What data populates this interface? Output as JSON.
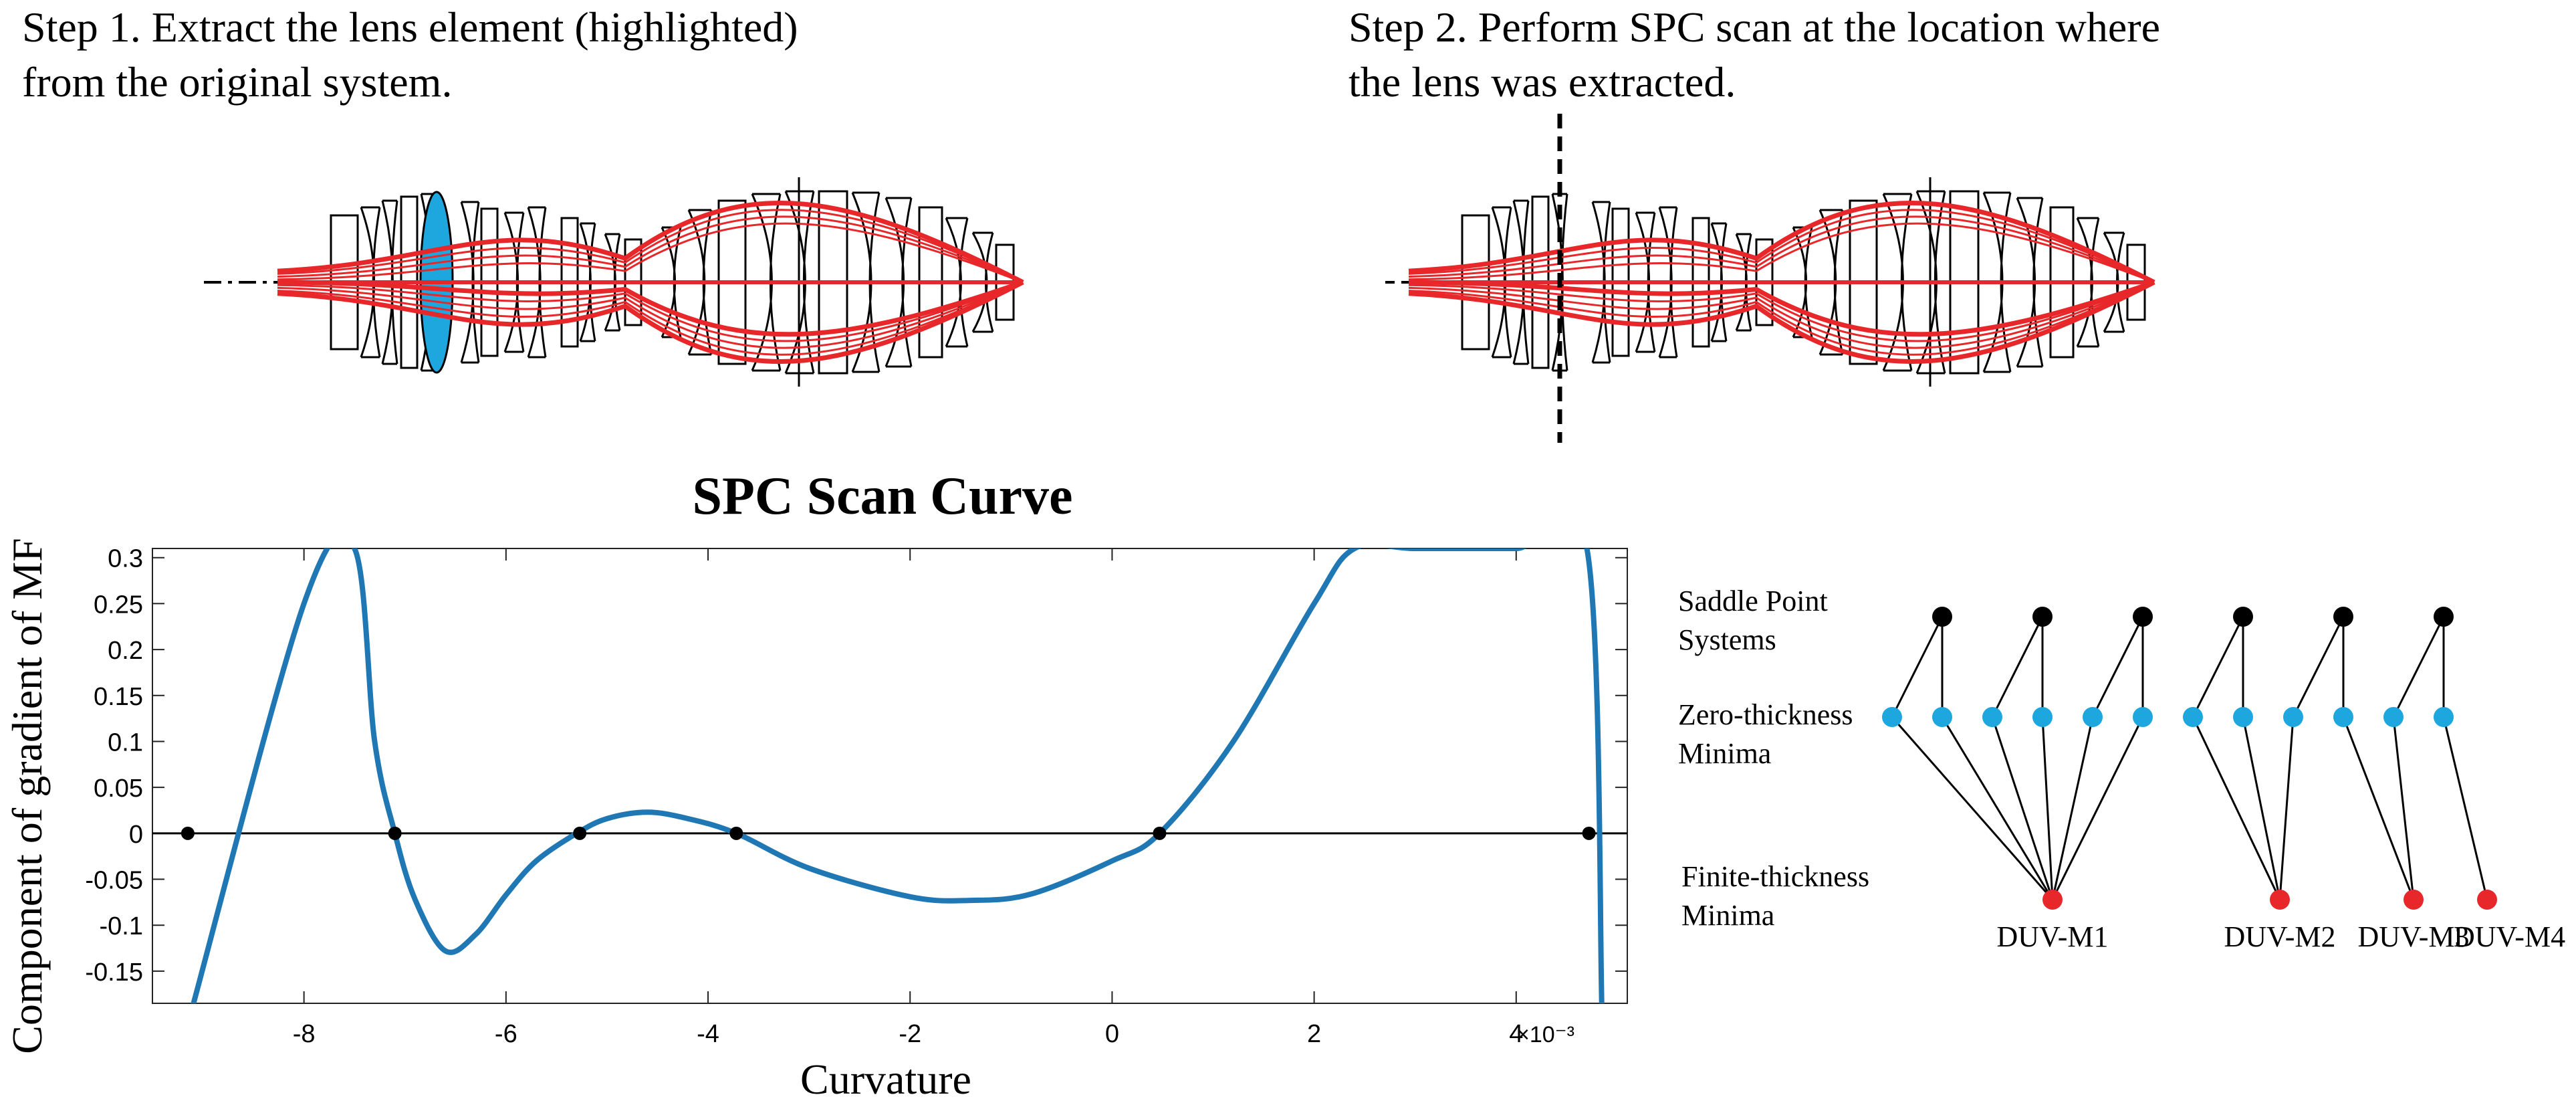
{
  "step1": {
    "line1": "Step 1. Extract the lens element (highlighted)",
    "line2": "from the original system."
  },
  "step2": {
    "line1": "Step 2. Perform SPC scan at the location where",
    "line2": "the lens was extracted."
  },
  "colors": {
    "ray": "#e8272a",
    "highlight": "#1ea6df",
    "curve": "#1f77b4",
    "saddle": "#000000",
    "zero_thickness": "#1ea6df",
    "finite_thickness": "#e8272a"
  },
  "chart_data": {
    "type": "line",
    "title": "SPC Scan Curve",
    "xlabel": "Curvature",
    "ylabel": "Component of gradient of MF",
    "x_exponent_label": "×10⁻³",
    "xlim": [
      -9.5,
      5.1
    ],
    "ylim": [
      -0.185,
      0.31
    ],
    "x_ticks": [
      "-8",
      "-6",
      "-4",
      "-2",
      "0",
      "2",
      "4"
    ],
    "y_ticks": [
      "0.3",
      "0.25",
      "0.2",
      "0.15",
      "0.1",
      "0.05",
      "0",
      "-0.05",
      "-0.1",
      "-0.15"
    ],
    "grid": false,
    "zero_line": true,
    "series": [
      {
        "x": [
          -9.13,
          -8.0,
          -7.5,
          -7.3,
          -7.1,
          -6.9,
          -6.6,
          -6.3,
          -6.0,
          -5.7,
          -5.3,
          -5.0,
          -4.6,
          -4.2,
          -3.72,
          -3.0,
          -2.0,
          -1.4,
          -0.8,
          0.0,
          0.47,
          1.2,
          2.0,
          2.4,
          3.0,
          4.0,
          4.7,
          4.85
        ],
        "y": [
          -0.2,
          0.25,
          0.31,
          0.1,
          0.0,
          -0.072,
          -0.128,
          -0.11,
          -0.067,
          -0.03,
          0.0,
          0.016,
          0.023,
          0.016,
          0.0,
          -0.038,
          -0.069,
          -0.073,
          -0.066,
          -0.03,
          0.0,
          0.1,
          0.25,
          0.31,
          0.31,
          0.31,
          0.31,
          -0.2
        ]
      }
    ],
    "zero_crossings": [
      -9.15,
      -7.1,
      -5.27,
      -3.72,
      0.47,
      4.72
    ]
  },
  "tree": {
    "levels": {
      "saddle_line1": "Saddle Point",
      "saddle_line2": "Systems",
      "zero_line1": "Zero-thickness",
      "zero_line2": "Minima",
      "finite_line1": "Finite-thickness",
      "finite_line2": "Minima"
    },
    "saddle_count": 6,
    "zero_count": 12,
    "finite": [
      {
        "label": "DUV-M1"
      },
      {
        "label": "DUV-M2"
      },
      {
        "label": "DUV-M3"
      },
      {
        "label": "DUV-M4"
      }
    ],
    "zero_to_finite": [
      0,
      0,
      0,
      0,
      0,
      0,
      1,
      1,
      1,
      2,
      2,
      3
    ]
  }
}
